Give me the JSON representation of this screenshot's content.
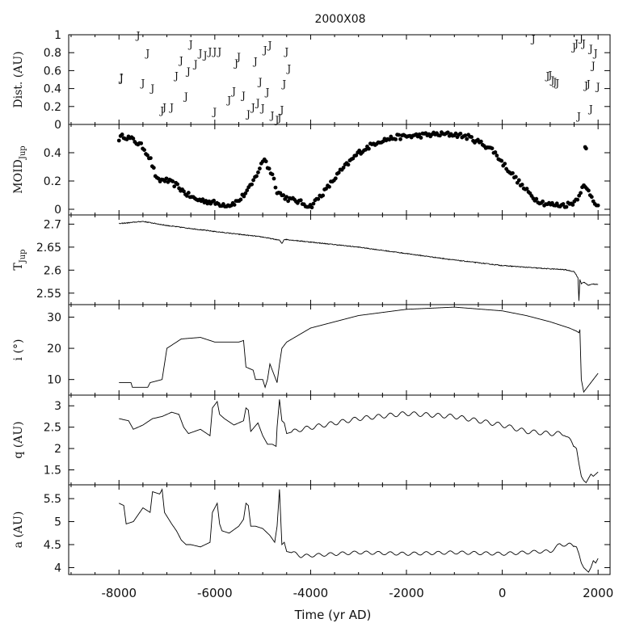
{
  "title": "2000X08",
  "xlabel": "Time (yr AD)",
  "x_ticks": [
    -8000,
    -6000,
    -4000,
    -2000,
    0,
    2000
  ],
  "x_tick_labels": [
    "-8000",
    "-6000",
    "-4000",
    "-2000",
    "0",
    "2000"
  ],
  "xlim": [
    -9050,
    2250
  ],
  "jupiter_symbol": "J",
  "chart_data": [
    {
      "type": "scatter",
      "panel": "dist",
      "ylabel": "Dist. (AU)",
      "ylim": [
        0,
        1.0
      ],
      "y_ticks": [
        0,
        0.2,
        0.4,
        0.6,
        0.8,
        1
      ],
      "y_tick_labels": [
        "0",
        "0.2",
        "0.4",
        "0.6",
        "0.8",
        "1"
      ],
      "marker": "J",
      "x": [
        -7950,
        -7950,
        -7600,
        -7500,
        -7400,
        -7300,
        -7100,
        -7050,
        -6900,
        -6800,
        -6700,
        -6600,
        -6550,
        -6500,
        -6400,
        -6300,
        -6200,
        -6100,
        -6000,
        -6000,
        -5900,
        -5700,
        -5600,
        -5550,
        -5500,
        -5400,
        -5300,
        -5200,
        -5150,
        -5100,
        -5050,
        -5000,
        -4950,
        -4900,
        -4850,
        -4800,
        -4700,
        -4650,
        -4600,
        -4550,
        -4500,
        -4450,
        650,
        950,
        1000,
        1050,
        1100,
        1150,
        1500,
        1550,
        1600,
        1650,
        1700,
        1750,
        1800,
        1850,
        1850,
        1900,
        1950,
        2000
      ],
      "y": [
        0.52,
        0.53,
        1.0,
        0.47,
        0.8,
        0.41,
        0.16,
        0.2,
        0.2,
        0.55,
        0.72,
        0.32,
        0.6,
        0.9,
        0.68,
        0.8,
        0.78,
        0.82,
        0.82,
        0.15,
        0.82,
        0.28,
        0.38,
        0.69,
        0.76,
        0.33,
        0.12,
        0.2,
        0.71,
        0.25,
        0.48,
        0.19,
        0.84,
        0.37,
        0.89,
        0.11,
        0.06,
        0.08,
        0.17,
        0.46,
        0.82,
        0.63,
        0.96,
        0.55,
        0.56,
        0.5,
        0.48,
        0.47,
        0.87,
        0.91,
        0.1,
        0.97,
        0.91,
        0.44,
        0.46,
        0.85,
        0.18,
        0.66,
        0.8,
        0.43
      ]
    },
    {
      "type": "scatter",
      "panel": "moid",
      "ylabel_main": "MOID",
      "ylabel_sub": "Jup",
      "ylim": [
        -0.04,
        0.6
      ],
      "y_ticks": [
        0,
        0.2,
        0.4
      ],
      "y_tick_labels": [
        "0",
        "0.2",
        "0.4"
      ],
      "keyframes_x": [
        -8000,
        -7900,
        -7700,
        -7500,
        -7350,
        -7200,
        -7050,
        -6800,
        -6600,
        -6400,
        -6200,
        -5950,
        -5700,
        -5500,
        -5250,
        -5050,
        -4950,
        -4900,
        -4800,
        -4700,
        -4600,
        -4450,
        -4300,
        -4150,
        -4000,
        -3700,
        -3400,
        -3000,
        -2600,
        -2200,
        -1800,
        -1400,
        -1000,
        -700,
        -400,
        -200,
        0,
        200,
        450,
        700,
        900,
        1100,
        1300,
        1450,
        1550,
        1650,
        1700,
        1800,
        1900,
        2000
      ],
      "keyframes_y": [
        0.5,
        0.52,
        0.49,
        0.44,
        0.36,
        0.2,
        0.21,
        0.17,
        0.11,
        0.07,
        0.06,
        0.04,
        0.03,
        0.06,
        0.16,
        0.3,
        0.37,
        0.3,
        0.25,
        0.13,
        0.1,
        0.07,
        0.06,
        0.04,
        0.02,
        0.13,
        0.26,
        0.4,
        0.48,
        0.51,
        0.52,
        0.53,
        0.53,
        0.51,
        0.46,
        0.42,
        0.33,
        0.25,
        0.15,
        0.07,
        0.04,
        0.03,
        0.03,
        0.04,
        0.07,
        0.14,
        0.16,
        0.13,
        0.07,
        0.02
      ],
      "extra_points": [
        [
          1730,
          0.44
        ],
        [
          1750,
          0.43
        ]
      ]
    },
    {
      "type": "line",
      "panel": "tjup",
      "ylabel_main": "T",
      "ylabel_sub": "Jup",
      "ylim": [
        2.525,
        2.72
      ],
      "y_ticks": [
        2.55,
        2.6,
        2.65,
        2.7
      ],
      "y_tick_labels": [
        "2.55",
        "2.6",
        "2.65",
        "2.7"
      ],
      "keyframes_x": [
        -8000,
        -7500,
        -7000,
        -6000,
        -5000,
        -4650,
        -4600,
        -4550,
        -4000,
        -3000,
        -2000,
        -1000,
        0,
        800,
        1300,
        1500,
        1580,
        1600,
        1620,
        1650,
        1700,
        1800,
        1900,
        2000
      ],
      "keyframes_y": [
        2.701,
        2.706,
        2.697,
        2.684,
        2.672,
        2.665,
        2.658,
        2.667,
        2.661,
        2.65,
        2.636,
        2.622,
        2.61,
        2.604,
        2.601,
        2.597,
        2.583,
        2.533,
        2.58,
        2.57,
        2.574,
        2.567,
        2.57,
        2.569
      ]
    },
    {
      "type": "line",
      "panel": "incl",
      "ylabel": "i (°)",
      "ylim": [
        5,
        34
      ],
      "y_ticks": [
        10,
        20,
        30
      ],
      "y_tick_labels": [
        "10",
        "20",
        "30"
      ],
      "keyframes_x": [
        -8000,
        -7750,
        -7720,
        -7400,
        -7350,
        -7100,
        -7000,
        -6800,
        -6700,
        -6300,
        -6000,
        -5700,
        -5500,
        -5400,
        -5350,
        -5200,
        -5150,
        -5000,
        -4950,
        -4900,
        -4850,
        -4700,
        -4650,
        -4600,
        -4500,
        -4000,
        -3000,
        -2000,
        -1000,
        0,
        500,
        1000,
        1400,
        1550,
        1600,
        1620,
        1650,
        1700,
        1800,
        1900,
        2000
      ],
      "keyframes_y": [
        9,
        9,
        7.5,
        7.5,
        9,
        10,
        20,
        22,
        23,
        23.5,
        22,
        22,
        22,
        22.5,
        14,
        13,
        10,
        10,
        7.5,
        10,
        15,
        9,
        15,
        20,
        22,
        26.5,
        30.5,
        32.5,
        33.2,
        32,
        30.5,
        28.5,
        26.5,
        25.5,
        25,
        26,
        10,
        6,
        8,
        10,
        12
      ]
    },
    {
      "type": "line",
      "panel": "q",
      "ylabel": "q (AU)",
      "ylim": [
        1.15,
        3.25
      ],
      "y_ticks": [
        1.5,
        2,
        2.5,
        3
      ],
      "y_tick_labels": [
        "1.5",
        "2",
        "2.5",
        "3"
      ],
      "keyframes_x": [
        -8000,
        -7800,
        -7700,
        -7500,
        -7300,
        -7100,
        -6900,
        -6750,
        -6650,
        -6550,
        -6300,
        -6100,
        -6050,
        -5950,
        -5900,
        -5800,
        -5600,
        -5400,
        -5350,
        -5300,
        -5250,
        -5100,
        -5000,
        -4900,
        -4800,
        -4720,
        -4700,
        -4650,
        -4600,
        -4550,
        -4500,
        -4200,
        -3000,
        -2000,
        -1000,
        0,
        500,
        1000,
        1300,
        1500,
        1550,
        1600,
        1650,
        1700,
        1750,
        1800,
        1850,
        1900,
        2000
      ],
      "keyframes_y": [
        2.7,
        2.65,
        2.45,
        2.55,
        2.7,
        2.75,
        2.85,
        2.8,
        2.5,
        2.35,
        2.45,
        2.3,
        2.95,
        3.1,
        2.8,
        2.7,
        2.55,
        2.65,
        2.95,
        2.9,
        2.4,
        2.6,
        2.3,
        2.1,
        2.1,
        2.05,
        2.5,
        3.15,
        2.65,
        2.6,
        2.35,
        2.45,
        2.7,
        2.82,
        2.75,
        2.55,
        2.4,
        2.35,
        2.35,
        2.05,
        2.0,
        1.65,
        1.35,
        1.25,
        1.2,
        1.3,
        1.4,
        1.35,
        1.45
      ]
    },
    {
      "type": "line",
      "panel": "a",
      "ylabel": "a (AU)",
      "ylim": [
        3.85,
        5.8
      ],
      "y_ticks": [
        4,
        4.5,
        5,
        5.5
      ],
      "y_tick_labels": [
        "4",
        "4.5",
        "5",
        "5.5"
      ],
      "keyframes_x": [
        -8000,
        -7900,
        -7850,
        -7700,
        -7500,
        -7350,
        -7300,
        -7150,
        -7100,
        -7050,
        -6900,
        -6800,
        -6700,
        -6600,
        -6500,
        -6300,
        -6100,
        -6050,
        -5950,
        -5900,
        -5850,
        -5700,
        -5500,
        -5400,
        -5350,
        -5300,
        -5250,
        -5150,
        -5000,
        -4850,
        -4750,
        -4700,
        -4650,
        -4600,
        -4550,
        -4500,
        -4300,
        -4200,
        -3000,
        -2000,
        -1000,
        0,
        500,
        800,
        1000,
        1200,
        1400,
        1550,
        1600,
        1650,
        1700,
        1750,
        1800,
        1850,
        1900,
        1950,
        2000
      ],
      "keyframes_y": [
        5.4,
        5.35,
        4.95,
        5.0,
        5.3,
        5.2,
        5.65,
        5.6,
        5.7,
        5.2,
        4.95,
        4.8,
        4.6,
        4.5,
        4.5,
        4.45,
        4.55,
        5.2,
        5.4,
        4.95,
        4.8,
        4.75,
        4.9,
        5.05,
        5.4,
        5.35,
        4.9,
        4.9,
        4.85,
        4.7,
        4.55,
        4.9,
        5.7,
        4.5,
        4.55,
        4.35,
        4.3,
        4.25,
        4.33,
        4.3,
        4.33,
        4.3,
        4.33,
        4.35,
        4.35,
        4.5,
        4.5,
        4.45,
        4.3,
        4.1,
        4.0,
        3.95,
        3.9,
        4.0,
        4.15,
        4.1,
        4.2
      ]
    }
  ]
}
